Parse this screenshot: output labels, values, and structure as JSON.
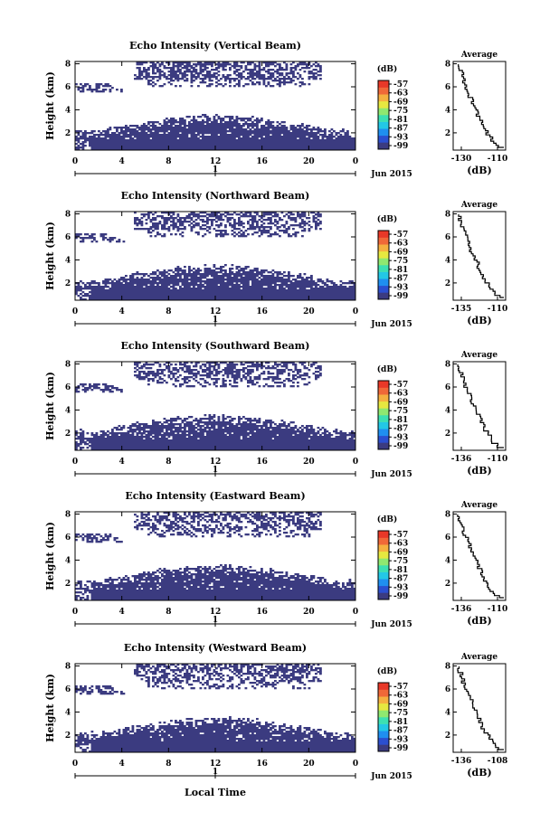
{
  "figure": {
    "date_label": "Jun 2015",
    "local_time_label": "Local Time",
    "day_tick": "1",
    "cbar_unit": "(dB)",
    "avg_title": "Average",
    "avg_xlabel": "(dB)",
    "ylabel": "Height (km)"
  },
  "colors": {
    "fill": "#3b3b80",
    "colorbar": [
      "#3b3b80",
      "#2b4fd0",
      "#1f8ff0",
      "#23c8e6",
      "#3ce0b2",
      "#8fe870",
      "#e6e840",
      "#f5b040",
      "#f06838",
      "#e83828"
    ]
  },
  "chart_data": [
    {
      "type": "heatmap",
      "title": "Echo Intensity (Vertical Beam)",
      "xlabel": "",
      "ylabel": "Height (km)",
      "x_ticks": [
        "0",
        "4",
        "8",
        "12",
        "16",
        "20",
        "0"
      ],
      "y_ticks": [
        "2",
        "4",
        "6",
        "8"
      ],
      "ylim": [
        0.5,
        8.2
      ],
      "cbar_ticks": [
        "-57",
        "-63",
        "-69",
        "-75",
        "-81",
        "-87",
        "-93",
        "-99"
      ],
      "average": {
        "x_ticks": [
          "-130",
          "-110"
        ],
        "y_ticks": [
          "2",
          "4",
          "6",
          "8"
        ]
      }
    },
    {
      "type": "heatmap",
      "title": "Echo Intensity (Northward Beam)",
      "xlabel": "",
      "ylabel": "Height (km)",
      "x_ticks": [
        "0",
        "4",
        "8",
        "12",
        "16",
        "20",
        "0"
      ],
      "y_ticks": [
        "2",
        "4",
        "6",
        "8"
      ],
      "ylim": [
        0.5,
        8.2
      ],
      "cbar_ticks": [
        "-57",
        "-63",
        "-69",
        "-75",
        "-81",
        "-87",
        "-93",
        "-99"
      ],
      "average": {
        "x_ticks": [
          "-135",
          "-110"
        ],
        "y_ticks": [
          "2",
          "4",
          "6",
          "8"
        ]
      }
    },
    {
      "type": "heatmap",
      "title": "Echo Intensity (Southward Beam)",
      "xlabel": "",
      "ylabel": "Height (km)",
      "x_ticks": [
        "0",
        "4",
        "8",
        "12",
        "16",
        "20",
        "0"
      ],
      "y_ticks": [
        "2",
        "4",
        "6",
        "8"
      ],
      "ylim": [
        0.5,
        8.2
      ],
      "cbar_ticks": [
        "-57",
        "-63",
        "-69",
        "-75",
        "-81",
        "-87",
        "-93",
        "-99"
      ],
      "average": {
        "x_ticks": [
          "-136",
          "-110"
        ],
        "y_ticks": [
          "2",
          "4",
          "6",
          "8"
        ]
      }
    },
    {
      "type": "heatmap",
      "title": "Echo Intensity (Eastward Beam)",
      "xlabel": "",
      "ylabel": "Height (km)",
      "x_ticks": [
        "0",
        "4",
        "8",
        "12",
        "16",
        "20",
        "0"
      ],
      "y_ticks": [
        "2",
        "4",
        "6",
        "8"
      ],
      "ylim": [
        0.5,
        8.2
      ],
      "cbar_ticks": [
        "-57",
        "-63",
        "-69",
        "-75",
        "-81",
        "-87",
        "-93",
        "-99"
      ],
      "average": {
        "x_ticks": [
          "-136",
          "-110"
        ],
        "y_ticks": [
          "2",
          "4",
          "6",
          "8"
        ]
      }
    },
    {
      "type": "heatmap",
      "title": "Echo Intensity (Westward Beam)",
      "xlabel": "Local Time",
      "ylabel": "Height (km)",
      "x_ticks": [
        "0",
        "4",
        "8",
        "12",
        "16",
        "20",
        "0"
      ],
      "y_ticks": [
        "2",
        "4",
        "6",
        "8"
      ],
      "ylim": [
        0.5,
        8.2
      ],
      "cbar_ticks": [
        "-57",
        "-63",
        "-69",
        "-75",
        "-81",
        "-87",
        "-93",
        "-99"
      ],
      "average": {
        "x_ticks": [
          "-136",
          "-108"
        ],
        "y_ticks": [
          "2",
          "4",
          "6",
          "8"
        ]
      }
    }
  ]
}
